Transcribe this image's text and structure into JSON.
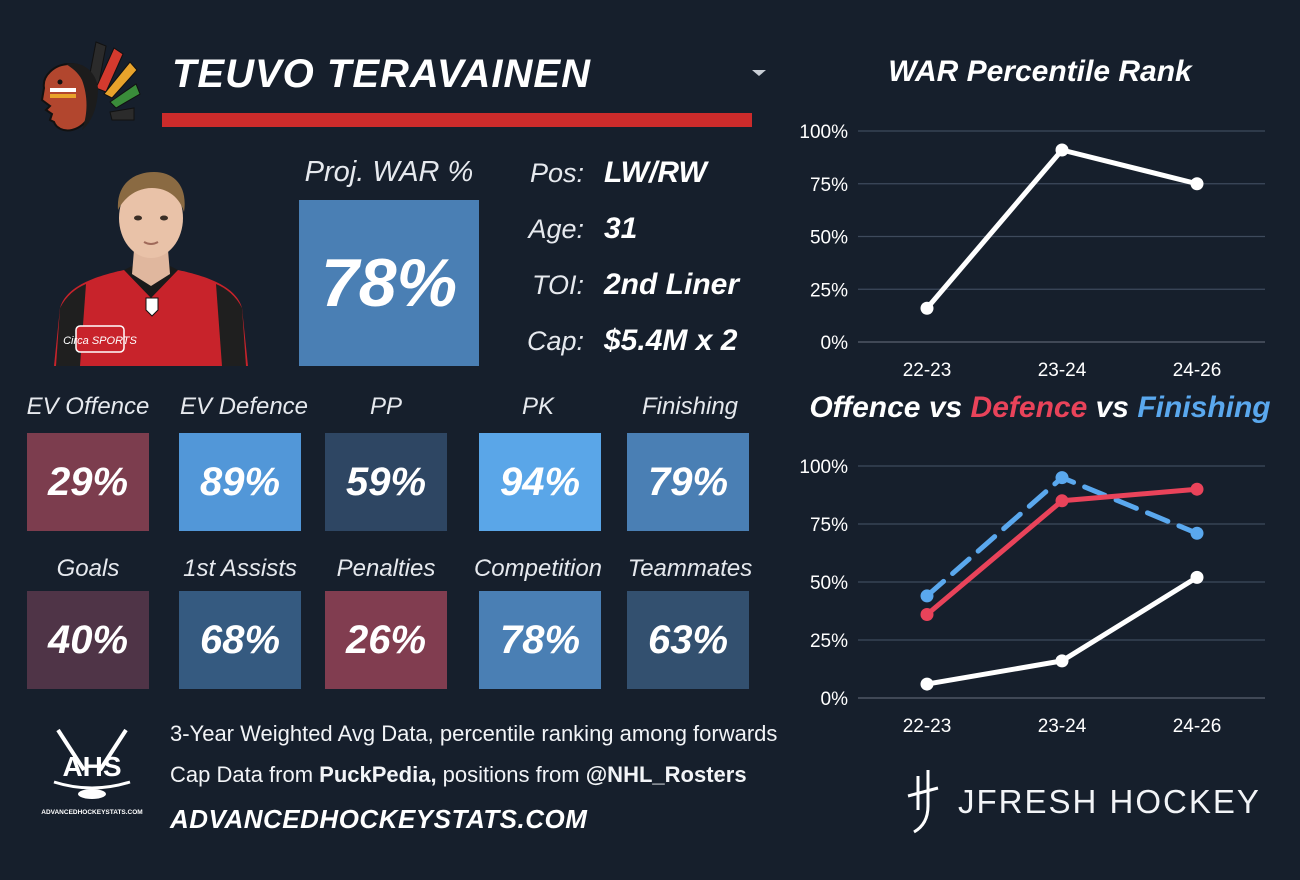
{
  "player": {
    "name": "TEUVO TERAVAINEN",
    "proj_label": "Proj. WAR %",
    "proj_value": "78%",
    "info": [
      {
        "key": "Pos:",
        "value": "LW/RW"
      },
      {
        "key": "Age:",
        "value": "31"
      },
      {
        "key": "TOI:",
        "value": "2nd Liner"
      },
      {
        "key": "Cap:",
        "value": "$5.4M x 2"
      }
    ],
    "jersey_text": "Circa SPORTS"
  },
  "stats_row1": [
    {
      "label": "EV Offence",
      "value": "29%",
      "pct": 29,
      "color": "#7c3d4e"
    },
    {
      "label": "EV Defence",
      "value": "89%",
      "pct": 89,
      "color": "#5297d8"
    },
    {
      "label": "PP",
      "value": "59%",
      "pct": 59,
      "color": "#2e4663"
    },
    {
      "label": "PK",
      "value": "94%",
      "pct": 94,
      "color": "#5aa6e8"
    },
    {
      "label": "Finishing",
      "value": "79%",
      "pct": 79,
      "color": "#4a7fb4"
    }
  ],
  "stats_row2": [
    {
      "label": "Goals",
      "value": "40%",
      "pct": 40,
      "color": "#4f3447"
    },
    {
      "label": "1st Assists",
      "value": "68%",
      "pct": 68,
      "color": "#355a80"
    },
    {
      "label": "Penalties",
      "value": "26%",
      "pct": 26,
      "color": "#813d50"
    },
    {
      "label": "Competition",
      "value": "78%",
      "pct": 78,
      "color": "#4a7fb4"
    },
    {
      "label": "Teammates",
      "value": "63%",
      "pct": 63,
      "color": "#33506f"
    }
  ],
  "footer": {
    "line1": "3-Year Weighted Avg Data, percentile ranking among forwards",
    "line2_prefix": "Cap Data from ",
    "line2_src1": "PuckPedia,",
    "line2_mid": " positions from ",
    "line2_src2": "@NHL_Rosters",
    "site": "ADVANCEDHOCKEYSTATS.COM",
    "ahs_logo_text": "AHS",
    "ahs_logo_sub": "ADVANCEDHOCKEYSTATS.COM",
    "jfresh": "JFRESH HOCKEY"
  },
  "chart_data": [
    {
      "type": "line",
      "title": "WAR Percentile Rank",
      "categories": [
        "22-23",
        "23-24",
        "24-26"
      ],
      "series": [
        {
          "values": [
            16,
            91,
            75
          ],
          "color": "#ffffff",
          "dashed": false
        }
      ],
      "ylim": [
        0,
        100
      ],
      "yticks": [
        "0%",
        "25%",
        "50%",
        "75%",
        "100%"
      ],
      "grid": true
    },
    {
      "type": "line",
      "title_parts": [
        "Offence",
        " vs ",
        "Defence",
        " vs ",
        "Finishing"
      ],
      "categories": [
        "22-23",
        "23-24",
        "24-26"
      ],
      "series": [
        {
          "values": [
            44,
            95,
            71
          ],
          "color": "#5aa8ee",
          "dashed": true
        },
        {
          "values": [
            36,
            85,
            90
          ],
          "color": "#e9435a",
          "dashed": false
        },
        {
          "values": [
            6,
            16,
            52
          ],
          "color": "#ffffff",
          "dashed": false
        }
      ],
      "ylim": [
        0,
        100
      ],
      "yticks": [
        "0%",
        "25%",
        "50%",
        "75%",
        "100%"
      ],
      "grid": true
    }
  ]
}
